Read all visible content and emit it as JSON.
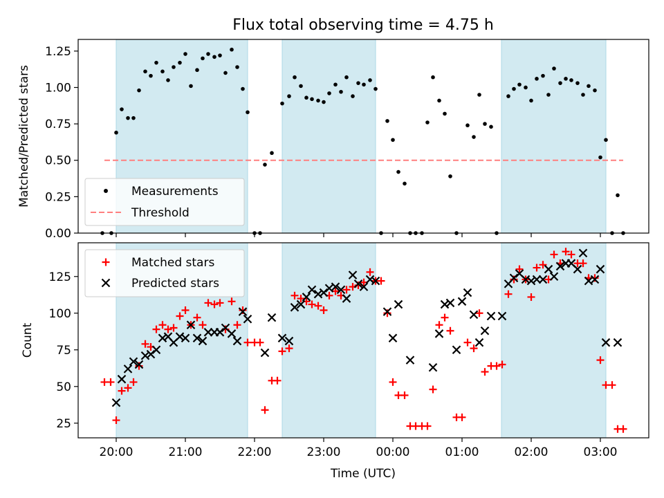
{
  "figure": {
    "title": "Flux total observing time = 4.75 h",
    "xlabel": "Time (UTC)"
  },
  "colors": {
    "shade": "#add8e6",
    "measurements": "#000000",
    "threshold": "#ff7f7f",
    "matched": "#ff0000",
    "predicted": "#000000"
  },
  "chart_data": [
    {
      "type": "scatter",
      "ylabel": "Matched/Predicted stars",
      "xlim_hours": [
        19.45,
        27.7
      ],
      "ylim": [
        0,
        1.33
      ],
      "yticks": [
        0,
        0.25,
        0.5,
        0.75,
        1.0,
        1.25
      ],
      "ytick_labels": [
        "0.00",
        "0.25",
        "0.50",
        "0.75",
        "1.00",
        "1.25"
      ],
      "grid": false,
      "legend_position": "lower-left",
      "shaded_intervals": [
        [
          20.0,
          21.9
        ],
        [
          22.4,
          23.75
        ],
        [
          25.57,
          27.08
        ]
      ],
      "threshold": {
        "name": "Threshold",
        "y": 0.5,
        "x_range": [
          19.83,
          27.33
        ]
      },
      "series": [
        {
          "name": "Measurements",
          "x": [
            19.8,
            19.93,
            20.0,
            20.08,
            20.17,
            20.25,
            20.33,
            20.42,
            20.5,
            20.58,
            20.67,
            20.75,
            20.83,
            20.92,
            21.0,
            21.08,
            21.17,
            21.25,
            21.33,
            21.42,
            21.5,
            21.58,
            21.67,
            21.75,
            21.83,
            21.9,
            22.0,
            22.08,
            22.15,
            22.25,
            22.4,
            22.5,
            22.58,
            22.67,
            22.75,
            22.83,
            22.92,
            23.0,
            23.08,
            23.17,
            23.25,
            23.33,
            23.42,
            23.5,
            23.58,
            23.67,
            23.75,
            23.83,
            23.92,
            24.0,
            24.08,
            24.17,
            24.25,
            24.33,
            24.42,
            24.5,
            24.58,
            24.67,
            24.75,
            24.83,
            24.92,
            25.08,
            25.17,
            25.25,
            25.33,
            25.42,
            25.5,
            25.67,
            25.75,
            25.83,
            25.92,
            26.0,
            26.08,
            26.17,
            26.25,
            26.33,
            26.42,
            26.5,
            26.58,
            26.67,
            26.75,
            26.83,
            26.92,
            27.0,
            27.08,
            27.17,
            27.25,
            27.33
          ],
          "y": [
            0.0,
            0.0,
            0.69,
            0.85,
            0.79,
            0.79,
            0.98,
            1.11,
            1.08,
            1.17,
            1.11,
            1.05,
            1.14,
            1.17,
            1.23,
            1.01,
            1.12,
            1.2,
            1.23,
            1.21,
            1.22,
            1.1,
            1.26,
            1.14,
            0.99,
            0.83,
            0.0,
            0.0,
            0.47,
            0.55,
            0.89,
            0.94,
            1.07,
            1.01,
            0.93,
            0.92,
            0.91,
            0.9,
            0.96,
            1.02,
            0.97,
            1.07,
            0.94,
            1.03,
            1.02,
            1.05,
            0.99,
            0.0,
            0.77,
            0.64,
            0.42,
            0.34,
            0.0,
            0.0,
            0.0,
            0.76,
            1.07,
            0.91,
            0.82,
            0.39,
            0.0,
            0.74,
            0.66,
            0.95,
            0.75,
            0.73,
            0.0,
            0.94,
            0.99,
            1.02,
            1.0,
            0.91,
            1.06,
            1.08,
            0.95,
            1.13,
            1.03,
            1.06,
            1.05,
            1.03,
            0.95,
            1.01,
            0.98,
            0.52,
            0.64,
            0.0,
            0.26,
            0.0
          ]
        }
      ]
    },
    {
      "type": "scatter",
      "ylabel": "Count",
      "xlim_hours": [
        19.45,
        27.7
      ],
      "ylim": [
        15,
        148
      ],
      "yticks": [
        25,
        50,
        75,
        100,
        125
      ],
      "ytick_labels": [
        "25",
        "50",
        "75",
        "100",
        "125"
      ],
      "xticks_hours": [
        20,
        21,
        22,
        23,
        24,
        25,
        26,
        27
      ],
      "xtick_labels": [
        "20:00",
        "21:00",
        "22:00",
        "23:00",
        "00:00",
        "01:00",
        "02:00",
        "03:00"
      ],
      "grid": false,
      "legend_position": "upper-left",
      "shaded_intervals": [
        [
          20.0,
          21.9
        ],
        [
          22.4,
          23.75
        ],
        [
          25.57,
          27.08
        ]
      ],
      "series": [
        {
          "name": "Matched stars",
          "x": [
            19.83,
            19.92,
            20.0,
            20.08,
            20.17,
            20.25,
            20.33,
            20.42,
            20.5,
            20.58,
            20.67,
            20.75,
            20.83,
            20.92,
            21.0,
            21.08,
            21.17,
            21.25,
            21.33,
            21.42,
            21.5,
            21.58,
            21.67,
            21.75,
            21.83,
            21.9,
            22.0,
            22.08,
            22.15,
            22.25,
            22.33,
            22.4,
            22.5,
            22.58,
            22.67,
            22.75,
            22.83,
            22.92,
            23.0,
            23.08,
            23.17,
            23.25,
            23.33,
            23.42,
            23.5,
            23.58,
            23.67,
            23.75,
            23.83,
            23.92,
            24.0,
            24.08,
            24.17,
            24.25,
            24.33,
            24.42,
            24.5,
            24.58,
            24.67,
            24.75,
            24.83,
            24.92,
            25.0,
            25.08,
            25.17,
            25.25,
            25.33,
            25.42,
            25.5,
            25.58,
            25.67,
            25.75,
            25.83,
            25.92,
            26.0,
            26.08,
            26.17,
            26.25,
            26.33,
            26.42,
            26.5,
            26.58,
            26.67,
            26.75,
            26.83,
            26.92,
            27.0,
            27.08,
            27.17,
            27.25,
            27.33
          ],
          "y": [
            53,
            53,
            27,
            47,
            49,
            53,
            64,
            79,
            77,
            89,
            92,
            89,
            90,
            98,
            102,
            92,
            97,
            92,
            107,
            106,
            107,
            89,
            108,
            92,
            102,
            80,
            80,
            80,
            34,
            54,
            54,
            74,
            76,
            112,
            110,
            108,
            106,
            105,
            102,
            112,
            115,
            112,
            116,
            118,
            119,
            121,
            128,
            122,
            122,
            100,
            53,
            44,
            44,
            23,
            23,
            23,
            23,
            48,
            92,
            97,
            88,
            29,
            29,
            80,
            76,
            100,
            60,
            64,
            64,
            65,
            113,
            123,
            130,
            123,
            111,
            131,
            133,
            123,
            140,
            134,
            142,
            140,
            134,
            134,
            124,
            124,
            68,
            51,
            51,
            21,
            21
          ]
        },
        {
          "name": "Predicted stars",
          "x": [
            20.0,
            20.08,
            20.17,
            20.25,
            20.33,
            20.42,
            20.5,
            20.58,
            20.67,
            20.75,
            20.83,
            20.92,
            21.0,
            21.08,
            21.17,
            21.25,
            21.33,
            21.42,
            21.5,
            21.58,
            21.67,
            21.75,
            21.83,
            21.9,
            22.15,
            22.25,
            22.4,
            22.5,
            22.58,
            22.67,
            22.75,
            22.83,
            22.92,
            23.0,
            23.08,
            23.17,
            23.25,
            23.33,
            23.42,
            23.5,
            23.58,
            23.67,
            23.75,
            23.92,
            24.0,
            24.08,
            24.25,
            24.58,
            24.67,
            24.75,
            24.83,
            24.92,
            25.0,
            25.08,
            25.17,
            25.25,
            25.33,
            25.42,
            25.58,
            25.67,
            25.75,
            25.83,
            25.92,
            26.0,
            26.08,
            26.17,
            26.25,
            26.33,
            26.42,
            26.5,
            26.58,
            26.67,
            26.75,
            26.83,
            26.92,
            27.0,
            27.08,
            27.25
          ],
          "y": [
            39,
            55,
            62,
            67,
            65,
            71,
            72,
            75,
            83,
            84,
            80,
            84,
            83,
            92,
            83,
            81,
            87,
            87,
            87,
            90,
            86,
            81,
            101,
            96,
            73,
            97,
            83,
            81,
            104,
            106,
            111,
            116,
            113,
            114,
            117,
            118,
            116,
            110,
            126,
            120,
            118,
            123,
            122,
            101,
            83,
            106,
            68,
            63,
            86,
            106,
            107,
            75,
            108,
            114,
            99,
            80,
            88,
            98,
            98,
            120,
            124,
            127,
            123,
            122,
            123,
            123,
            130,
            125,
            132,
            134,
            134,
            130,
            141,
            122,
            123,
            130,
            80,
            80
          ]
        }
      ]
    }
  ]
}
